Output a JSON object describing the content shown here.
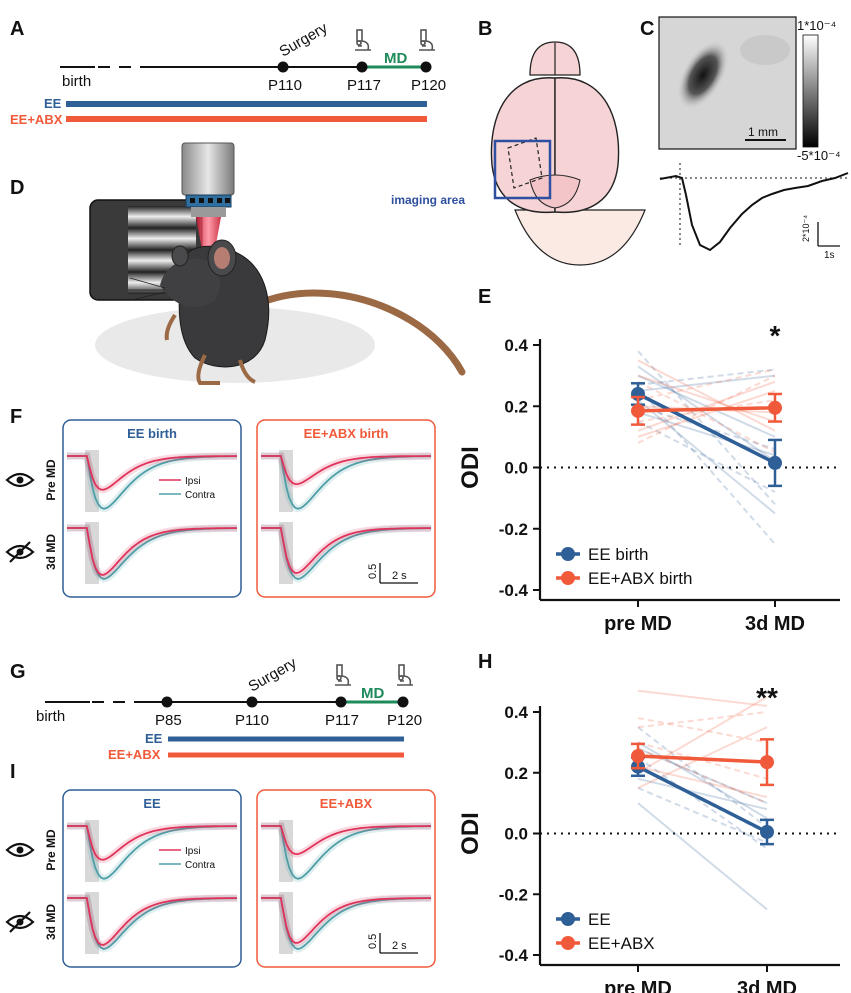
{
  "colors": {
    "ee": "#2f5f97",
    "abx": "#f05a3a",
    "md": "#1f8a5a",
    "ipsi": "#e0335b",
    "contra": "#4f9fa8",
    "box_ee": "#2f5f97",
    "box_abx": "#f05a3a",
    "imaging_area": "#2f4fa0",
    "brain_fill": "#f6d3d5"
  },
  "panels": {
    "A": {
      "label": "A",
      "birth": "birth",
      "surgery": "Surgery",
      "md": "MD",
      "ticks": [
        "P110",
        "P117",
        "P120"
      ],
      "bars": [
        "EE",
        "EE+ABX"
      ],
      "icons": [
        "microscope-icon",
        "microscope-icon"
      ]
    },
    "B": {
      "label": "B",
      "imaging_area": "imaging area"
    },
    "C": {
      "label": "C",
      "scale_top": "1*10⁻⁴",
      "scale_bottom": "-5*10⁻⁴",
      "bar": "1 mm",
      "ybar": "2*10⁻⁴",
      "xbar": "1s"
    },
    "D": {
      "label": "D"
    },
    "E": {
      "label": "E"
    },
    "F": {
      "label": "F",
      "boxes": [
        "EE birth",
        "EE+ABX birth"
      ],
      "rows": [
        "Pre MD",
        "3d MD"
      ],
      "legend": [
        "Ipsi",
        "Contra"
      ],
      "ybar": "0.5",
      "xbar": "2 s"
    },
    "G": {
      "label": "G",
      "birth": "birth",
      "surgery": "Surgery",
      "md": "MD",
      "ticks": [
        "P85",
        "P110",
        "P117",
        "P120"
      ],
      "bars": [
        "EE",
        "EE+ABX"
      ]
    },
    "H": {
      "label": "H"
    },
    "I": {
      "label": "I",
      "boxes": [
        "EE",
        "EE+ABX"
      ],
      "rows": [
        "Pre MD",
        "3d MD"
      ],
      "legend": [
        "Ipsi",
        "Contra"
      ],
      "ybar": "0.5",
      "xbar": "2 s"
    }
  },
  "chart_data": [
    {
      "id": "E",
      "type": "line",
      "ylabel": "ODI",
      "xlabel": "",
      "categories": [
        "pre MD",
        "3d MD"
      ],
      "ylim": [
        -0.4,
        0.4
      ],
      "yticks": [
        -0.4,
        -0.2,
        0.0,
        0.2,
        0.4
      ],
      "reference_line": 0,
      "significance": "*",
      "legend_position": "bottom-left",
      "series": [
        {
          "name": "EE birth",
          "values": [
            0.24,
            0.015
          ],
          "errors": [
            0.035,
            0.075
          ],
          "color": "#2f5f97",
          "individual": [
            [
              0.3,
              0.1
            ],
            [
              0.27,
              0.32
            ],
            [
              0.22,
              -0.15
            ],
            [
              0.2,
              0.06
            ],
            [
              0.33,
              0.02
            ],
            [
              0.15,
              -0.08
            ],
            [
              0.25,
              0.3
            ],
            [
              0.38,
              -0.12
            ],
            [
              0.18,
              0.04
            ],
            [
              0.26,
              -0.25
            ]
          ]
        },
        {
          "name": "EE+ABX birth",
          "values": [
            0.185,
            0.195
          ],
          "errors": [
            0.045,
            0.045
          ],
          "color": "#f05a3a",
          "individual": [
            [
              0.1,
              0.25
            ],
            [
              0.22,
              0.32
            ],
            [
              0.3,
              0.15
            ],
            [
              0.15,
              0.22
            ],
            [
              0.35,
              0.12
            ],
            [
              0.08,
              0.3
            ],
            [
              0.2,
              0.18
            ],
            [
              0.28,
              0.05
            ],
            [
              0.12,
              0.28
            ]
          ]
        }
      ]
    },
    {
      "id": "H",
      "type": "line",
      "ylabel": "ODI",
      "xlabel": "",
      "categories": [
        "pre MD",
        "3d MD"
      ],
      "ylim": [
        -0.4,
        0.4
      ],
      "yticks": [
        -0.4,
        -0.2,
        0.0,
        0.2,
        0.4
      ],
      "reference_line": 0,
      "significance": "**",
      "legend_position": "bottom-left",
      "series": [
        {
          "name": "EE",
          "values": [
            0.22,
            0.005
          ],
          "errors": [
            0.03,
            0.04
          ],
          "color": "#2f5f97",
          "individual": [
            [
              0.3,
              0.05
            ],
            [
              0.25,
              -0.05
            ],
            [
              0.18,
              0.08
            ],
            [
              0.35,
              0.02
            ],
            [
              0.1,
              -0.25
            ],
            [
              0.22,
              0.0
            ],
            [
              0.28,
              0.1
            ],
            [
              0.15,
              -0.03
            ]
          ]
        },
        {
          "name": "EE+ABX",
          "values": [
            0.255,
            0.235
          ],
          "errors": [
            0.04,
            0.075
          ],
          "color": "#f05a3a",
          "individual": [
            [
              0.47,
              0.42
            ],
            [
              0.38,
              0.3
            ],
            [
              0.2,
              0.45
            ],
            [
              0.28,
              0.1
            ],
            [
              0.15,
              0.35
            ],
            [
              0.3,
              0.18
            ],
            [
              0.22,
              0.12
            ],
            [
              0.35,
              0.4
            ]
          ]
        }
      ]
    }
  ]
}
